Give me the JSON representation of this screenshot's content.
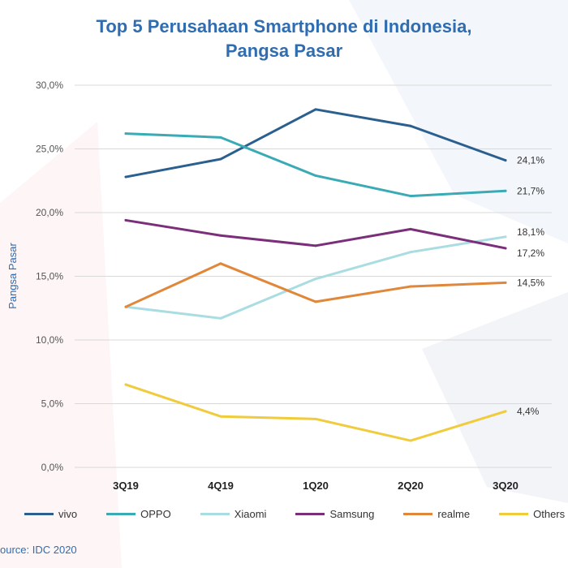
{
  "title_line1": "Top 5 Perusahaan Smartphone di Indonesia,",
  "title_line2": "Pangsa Pasar",
  "source": "ource: IDC 2020",
  "chart_data": {
    "type": "line",
    "title": "Top 5 Perusahaan Smartphone di Indonesia, Pangsa Pasar",
    "xlabel": "",
    "ylabel": "Pangsa Pasar",
    "ylim": [
      0,
      30
    ],
    "yticks": [
      "0,0%",
      "5,0%",
      "10,0%",
      "15,0%",
      "20,0%",
      "25,0%",
      "30,0%"
    ],
    "categories": [
      "3Q19",
      "4Q19",
      "1Q20",
      "2Q20",
      "3Q20"
    ],
    "grid": true,
    "legend_position": "bottom",
    "series": [
      {
        "name": "vivo",
        "color": "#2b5f8f",
        "values": [
          22.8,
          24.2,
          28.1,
          26.8,
          24.1
        ],
        "end_label": "24,1%"
      },
      {
        "name": "OPPO",
        "color": "#3aabb5",
        "values": [
          26.2,
          25.9,
          22.9,
          21.3,
          21.7
        ],
        "end_label": "21,7%"
      },
      {
        "name": "Xiaomi",
        "color": "#a9dde2",
        "values": [
          12.6,
          11.7,
          14.8,
          16.9,
          18.1
        ],
        "end_label": "18,1%"
      },
      {
        "name": "Samsung",
        "color": "#7b2e7a",
        "values": [
          19.4,
          18.2,
          17.4,
          18.7,
          17.2
        ],
        "end_label": "17,2%"
      },
      {
        "name": "realme",
        "color": "#e0873a",
        "values": [
          12.6,
          16.0,
          13.0,
          14.2,
          14.5
        ],
        "end_label": "14,5%"
      },
      {
        "name": "Others",
        "color": "#f0cc3c",
        "values": [
          6.5,
          4.0,
          3.8,
          2.1,
          4.4
        ],
        "end_label": "4,4%"
      }
    ]
  }
}
